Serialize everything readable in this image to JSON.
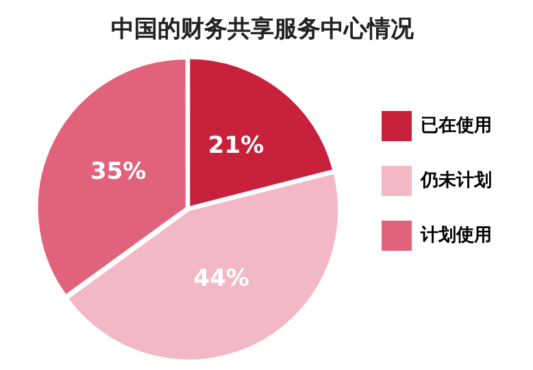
{
  "chart_data": {
    "type": "pie",
    "title": "中国的财务共享服务中心情况",
    "categories": [
      "已在使用",
      "仍未计划",
      "计划使用"
    ],
    "values": [
      21,
      44,
      35
    ],
    "value_labels": [
      "21%",
      "44%",
      "35%"
    ],
    "colors": [
      "#c8213b",
      "#f3b8c5",
      "#e0637b"
    ],
    "legend": "right"
  }
}
